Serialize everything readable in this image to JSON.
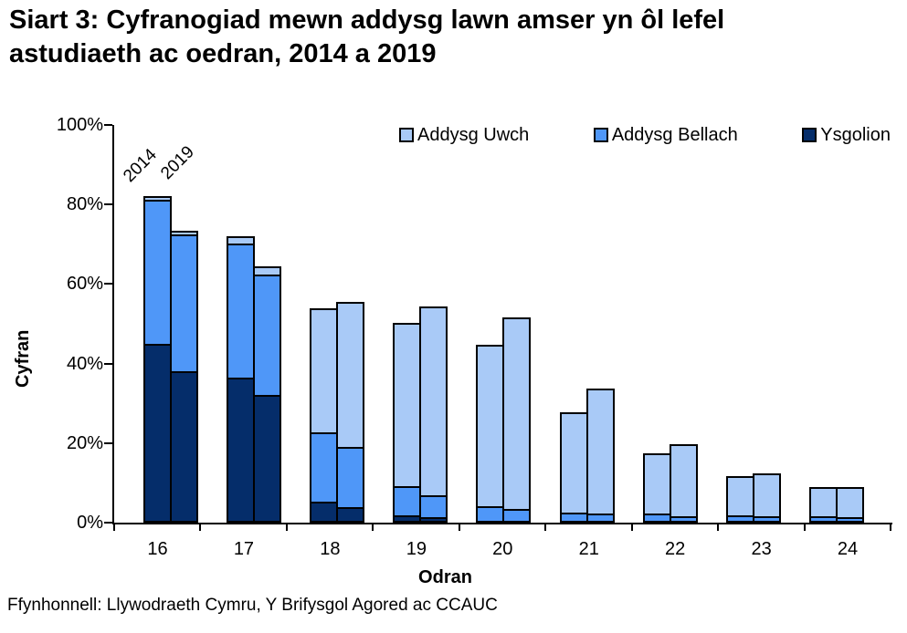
{
  "page": {
    "source": "Ffynhonnell: Llywodraeth Cymru, Y Brifysgol Agored ac CCAUC"
  },
  "chart_data": {
    "type": "bar",
    "stacked": true,
    "title": "Siart 3: Cyfranogiad mewn addysg lawn amser yn ôl lefel\nastudiaeth ac oedran, 2014 a 2019",
    "xlabel": "Odran",
    "ylabel": "Cyfran",
    "ylim": [
      0,
      100
    ],
    "ytick_values": [
      0,
      20,
      40,
      60,
      80,
      100
    ],
    "ytick_labels": [
      "0%",
      "20%",
      "40%",
      "60%",
      "80%",
      "100%"
    ],
    "grid": false,
    "legend_position": "top-right-inside",
    "categories": [
      "16",
      "17",
      "18",
      "19",
      "20",
      "21",
      "22",
      "23",
      "24"
    ],
    "years": [
      "2014",
      "2019"
    ],
    "stack_order": [
      "Ysgolion",
      "Addysg Bellach",
      "Addysg Uwch"
    ],
    "colors": {
      "Ysgolion": "#052d6a",
      "Addysg Bellach": "#4f97f8",
      "Addysg Uwch": "#a9caf7"
    },
    "legend": [
      {
        "label": "Addysg Uwch",
        "color": "#a9caf7"
      },
      {
        "label": "Addysg Bellach",
        "color": "#4f97f8"
      },
      {
        "label": "Ysgolion",
        "color": "#052d6a"
      }
    ],
    "values_pct": {
      "2014": {
        "Ysgolion": [
          45.0,
          36.6,
          4.5,
          1.0,
          0,
          0,
          0,
          0,
          0
        ],
        "Addysg Bellach": [
          36.7,
          33.9,
          17.5,
          7.2,
          3.4,
          1.8,
          1.4,
          1.0,
          0.9
        ],
        "Addysg Uwch": [
          0.5,
          1.5,
          32.0,
          42.0,
          41.3,
          26.0,
          16.0,
          10.7,
          8.0
        ]
      },
      "2019": {
        "Ysgolion": [
          38.2,
          32.1,
          3.2,
          0.5,
          0,
          0,
          0,
          0,
          0
        ],
        "Addysg Bellach": [
          34.7,
          30.8,
          15.0,
          5.3,
          2.5,
          1.5,
          0.8,
          0.7,
          0.5
        ],
        "Addysg Uwch": [
          0.5,
          1.5,
          37.3,
          48.6,
          49.0,
          32.2,
          19.0,
          11.8,
          8.4
        ]
      }
    }
  }
}
